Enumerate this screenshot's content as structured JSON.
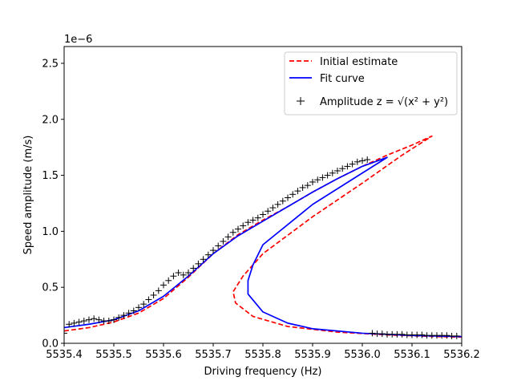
{
  "chart_data": {
    "type": "line",
    "xlabel": "Driving frequency (Hz)",
    "ylabel": "Speed amplitude (m/s)",
    "y_scale_factor_label": "1e−6",
    "xlim": [
      5535.4,
      5536.2
    ],
    "ylim": [
      0,
      2.65
    ],
    "x_ticks": [
      "5535.4",
      "5535.5",
      "5535.6",
      "5535.7",
      "5535.8",
      "5535.9",
      "5536.0",
      "5536.1",
      "5536.2"
    ],
    "y_ticks": [
      "0.0",
      "0.5",
      "1.0",
      "1.5",
      "2.0",
      "2.5"
    ],
    "grid": false,
    "legend_position": "top-right",
    "series": [
      {
        "name": "Initial estimate",
        "style": "dashed",
        "color": "#ff0000",
        "x": [
          5535.4,
          5535.45,
          5535.5,
          5535.55,
          5535.6,
          5535.65,
          5535.7,
          5535.75,
          5535.8,
          5535.85,
          5535.9,
          5535.95,
          5536.0,
          5536.05,
          5536.1,
          5536.14,
          5536.08,
          5536.0,
          5535.9,
          5535.8,
          5535.76,
          5535.74,
          5535.745,
          5535.78,
          5535.85,
          5535.95,
          5536.05,
          5536.15,
          5536.2
        ],
        "y": [
          0.11,
          0.14,
          0.19,
          0.27,
          0.4,
          0.59,
          0.8,
          0.97,
          1.1,
          1.22,
          1.35,
          1.47,
          1.58,
          1.68,
          1.77,
          1.85,
          1.68,
          1.43,
          1.13,
          0.8,
          0.6,
          0.46,
          0.36,
          0.24,
          0.15,
          0.1,
          0.075,
          0.06,
          0.055
        ]
      },
      {
        "name": "Fit curve",
        "style": "solid",
        "color": "#0000ff",
        "x": [
          5535.4,
          5535.45,
          5535.5,
          5535.55,
          5535.6,
          5535.65,
          5535.7,
          5535.75,
          5535.8,
          5535.85,
          5535.9,
          5535.95,
          5536.0,
          5536.05,
          5536.0,
          5535.9,
          5535.8,
          5535.78,
          5535.77,
          5535.77,
          5535.8,
          5535.85,
          5535.9,
          5536.0,
          5536.1,
          5536.2
        ],
        "y": [
          0.14,
          0.17,
          0.21,
          0.29,
          0.42,
          0.6,
          0.8,
          0.96,
          1.09,
          1.22,
          1.35,
          1.47,
          1.58,
          1.66,
          1.52,
          1.24,
          0.88,
          0.7,
          0.56,
          0.44,
          0.28,
          0.18,
          0.13,
          0.09,
          0.07,
          0.06
        ]
      },
      {
        "name": "Amplitude z = √(x² + y²)",
        "style": "markers",
        "marker": "+",
        "color": "#000000",
        "x": [
          5535.4,
          5535.41,
          5535.42,
          5535.43,
          5535.44,
          5535.45,
          5535.46,
          5535.47,
          5535.48,
          5535.49,
          5535.5,
          5535.51,
          5535.52,
          5535.53,
          5535.54,
          5535.55,
          5535.56,
          5535.57,
          5535.58,
          5535.59,
          5535.6,
          5535.61,
          5535.62,
          5535.63,
          5535.64,
          5535.65,
          5535.66,
          5535.67,
          5535.68,
          5535.69,
          5535.7,
          5535.71,
          5535.72,
          5535.73,
          5535.74,
          5535.75,
          5535.76,
          5535.77,
          5535.78,
          5535.79,
          5535.8,
          5535.81,
          5535.82,
          5535.83,
          5535.84,
          5535.85,
          5535.86,
          5535.87,
          5535.88,
          5535.89,
          5535.9,
          5535.91,
          5535.92,
          5535.93,
          5535.94,
          5535.95,
          5535.96,
          5535.97,
          5535.98,
          5535.99,
          5536.0,
          5536.01,
          5536.02,
          5536.03,
          5536.04,
          5536.05,
          5536.06,
          5536.07,
          5536.08,
          5536.09,
          5536.1,
          5536.11,
          5536.12,
          5536.13,
          5536.14,
          5536.15,
          5536.16,
          5536.17,
          5536.18,
          5536.19
        ],
        "y": [
          0.09,
          0.17,
          0.18,
          0.19,
          0.2,
          0.21,
          0.22,
          0.21,
          0.2,
          0.2,
          0.21,
          0.23,
          0.25,
          0.27,
          0.29,
          0.32,
          0.35,
          0.39,
          0.43,
          0.47,
          0.52,
          0.56,
          0.6,
          0.63,
          0.61,
          0.63,
          0.67,
          0.71,
          0.75,
          0.79,
          0.83,
          0.87,
          0.91,
          0.95,
          0.99,
          1.02,
          1.05,
          1.08,
          1.1,
          1.12,
          1.15,
          1.18,
          1.21,
          1.24,
          1.27,
          1.3,
          1.33,
          1.36,
          1.39,
          1.41,
          1.44,
          1.46,
          1.48,
          1.5,
          1.52,
          1.54,
          1.56,
          1.58,
          1.6,
          1.62,
          1.63,
          1.64,
          0.09,
          0.085,
          0.085,
          0.08,
          0.08,
          0.08,
          0.08,
          0.075,
          0.075,
          0.075,
          0.075,
          0.07,
          0.07,
          0.07,
          0.07,
          0.07,
          0.065,
          0.065
        ]
      }
    ]
  }
}
